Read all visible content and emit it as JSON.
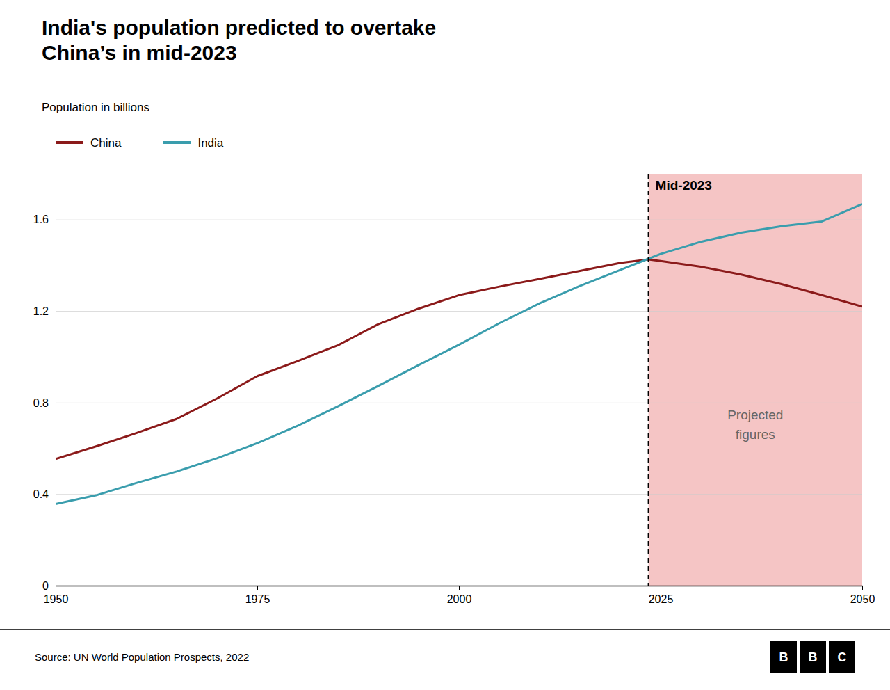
{
  "chart_data": {
    "type": "line",
    "title": "India's population predicted to overtake\nChina’s in mid-2023",
    "y_label": "Population in billions",
    "source": "Source: UN World Population Prospects, 2022",
    "logo": "BBC",
    "x": [
      1950,
      1955,
      1960,
      1965,
      1970,
      1975,
      1980,
      1985,
      1990,
      1995,
      2000,
      2005,
      2010,
      2015,
      2020,
      2023.5,
      2025,
      2030,
      2035,
      2040,
      2045,
      2050
    ],
    "series": [
      {
        "name": "China",
        "color": "#8b1a1a",
        "values": [
          0.554,
          0.609,
          0.667,
          0.729,
          0.818,
          0.916,
          0.982,
          1.051,
          1.143,
          1.211,
          1.27,
          1.307,
          1.341,
          1.376,
          1.411,
          1.426,
          1.419,
          1.394,
          1.36,
          1.318,
          1.27,
          1.22
        ]
      },
      {
        "name": "India",
        "color": "#3a9dad",
        "values": [
          0.357,
          0.395,
          0.449,
          0.499,
          0.557,
          0.623,
          0.699,
          0.784,
          0.873,
          0.964,
          1.053,
          1.147,
          1.234,
          1.31,
          1.38,
          1.429,
          1.45,
          1.503,
          1.543,
          1.571,
          1.592,
          1.668
        ]
      }
    ],
    "annotations": [
      {
        "text": "Mid-2023",
        "x": 2023.5
      },
      {
        "text": "Projected\nfigures",
        "color": "#f5c5c5"
      }
    ],
    "xlim": [
      1950,
      2050
    ],
    "ylim": [
      0,
      1.8
    ],
    "xticks": [
      1950,
      1975,
      2000,
      2025,
      2050
    ],
    "yticks": [
      0,
      0.4,
      0.8,
      1.2,
      1.6
    ],
    "grid": true,
    "legend": "top-left"
  }
}
